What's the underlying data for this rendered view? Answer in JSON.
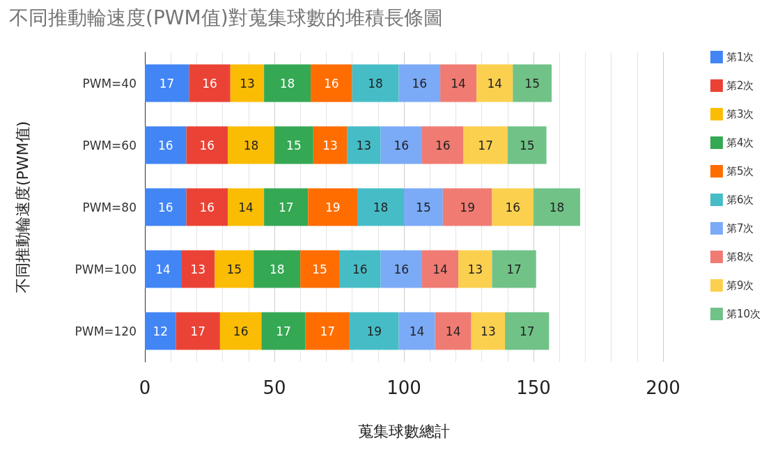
{
  "chart_data": {
    "type": "bar",
    "orientation": "horizontal",
    "stacked": true,
    "title": "不同推動輪速度(PWM值)對蒐集球數的堆積長條圖",
    "xlabel": "蒐集球數總計",
    "ylabel": "不同推動輪速度(PWM值)",
    "categories": [
      "PWM=40",
      "PWM=60",
      "PWM=80",
      "PWM=100",
      "PWM=120"
    ],
    "series": [
      {
        "name": "第1次",
        "color": "#4285f4",
        "values": [
          17,
          16,
          16,
          14,
          12
        ]
      },
      {
        "name": "第2次",
        "color": "#ea4335",
        "values": [
          16,
          16,
          16,
          13,
          17
        ]
      },
      {
        "name": "第3次",
        "color": "#fbbc04",
        "values": [
          13,
          18,
          14,
          15,
          16
        ]
      },
      {
        "name": "第4次",
        "color": "#34a853",
        "values": [
          18,
          15,
          17,
          18,
          17
        ]
      },
      {
        "name": "第5次",
        "color": "#ff6d01",
        "values": [
          16,
          13,
          19,
          15,
          17
        ]
      },
      {
        "name": "第6次",
        "color": "#46bdc6",
        "values": [
          18,
          13,
          18,
          16,
          19
        ]
      },
      {
        "name": "第7次",
        "color": "#7baaf7",
        "values": [
          16,
          16,
          15,
          16,
          14
        ]
      },
      {
        "name": "第8次",
        "color": "#f07b72",
        "values": [
          14,
          16,
          19,
          14,
          14
        ]
      },
      {
        "name": "第9次",
        "color": "#fcd04f",
        "values": [
          14,
          17,
          16,
          13,
          13
        ]
      },
      {
        "name": "第10次",
        "color": "#71c287",
        "values": [
          15,
          15,
          18,
          17,
          17
        ]
      }
    ],
    "xlim": [
      0,
      200
    ],
    "xticks": [
      0,
      50,
      100,
      150,
      200
    ],
    "grid": "x",
    "legend": "right",
    "data_labels": true
  }
}
